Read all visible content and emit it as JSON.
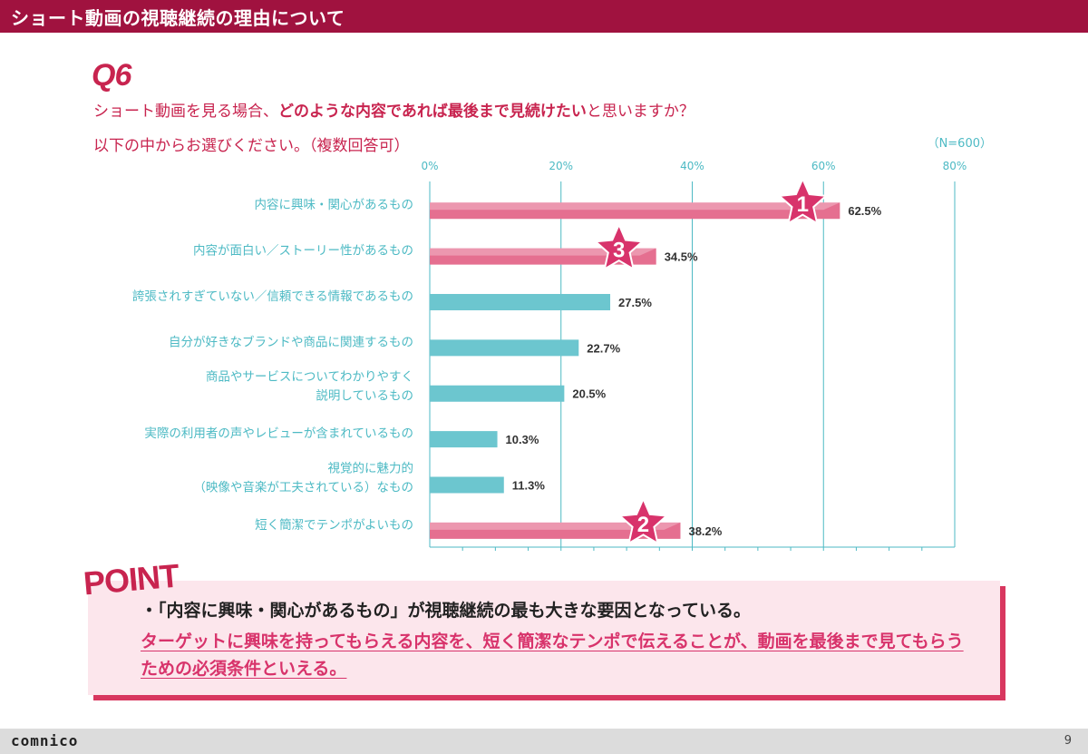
{
  "header": {
    "title": "ショート動画の視聴継続の理由について"
  },
  "question": {
    "number": "Q6",
    "line1_pre": "ショート動画を見る場合、",
    "line1_bold": "どのような内容であれば最後まで見続けたい",
    "line1_post": "と思いますか？",
    "line2": "以下の中からお選びください。（複数回答可）",
    "n_label": "（N=600）"
  },
  "colors": {
    "brand": "#a0123f",
    "pink_bar": "#e56f90",
    "teal_bar": "#6cc6cf",
    "star": "#d8336b",
    "label": "#4dbac4"
  },
  "chart_data": {
    "type": "bar",
    "orientation": "horizontal",
    "xlim": [
      0,
      80
    ],
    "ticks": [
      "0%",
      "20%",
      "40%",
      "60%",
      "80%"
    ],
    "tick_values": [
      0,
      20,
      40,
      60,
      80
    ],
    "categories": [
      [
        "内容に興味・関心があるもの"
      ],
      [
        "内容が面白い／ストーリー性があるもの"
      ],
      [
        "誇張されすぎていない／信頼できる情報であるもの"
      ],
      [
        "自分が好きなブランドや商品に関連するもの"
      ],
      [
        "商品やサービスについてわかりやすく",
        "説明しているもの"
      ],
      [
        "実際の利用者の声やレビューが含まれているもの"
      ],
      [
        "視覚的に魅力的",
        "（映像や音楽が工夫されている）なもの"
      ],
      [
        "短く簡潔でテンポがよいもの"
      ]
    ],
    "values": [
      62.5,
      34.5,
      27.5,
      22.7,
      20.5,
      10.3,
      11.3,
      38.2
    ],
    "value_labels": [
      "62.5%",
      "34.5%",
      "27.5%",
      "22.7%",
      "20.5%",
      "10.3%",
      "11.3%",
      "38.2%"
    ],
    "highlighted": [
      true,
      true,
      false,
      false,
      false,
      false,
      false,
      true
    ],
    "ranks": [
      "1",
      "3",
      "",
      "",
      "",
      "",
      "",
      "2"
    ]
  },
  "point": {
    "title": "POINT",
    "bullet": "・「内容に興味・関心があるもの」が視聴継続の最も大きな要因となっている。",
    "body": "ターゲットに興味を持ってもらえる内容を、短く簡潔なテンポで伝えることが、動画を最後まで見てもらうための必須条件といえる。"
  },
  "footer": {
    "logo": "comnico",
    "page": "9"
  }
}
